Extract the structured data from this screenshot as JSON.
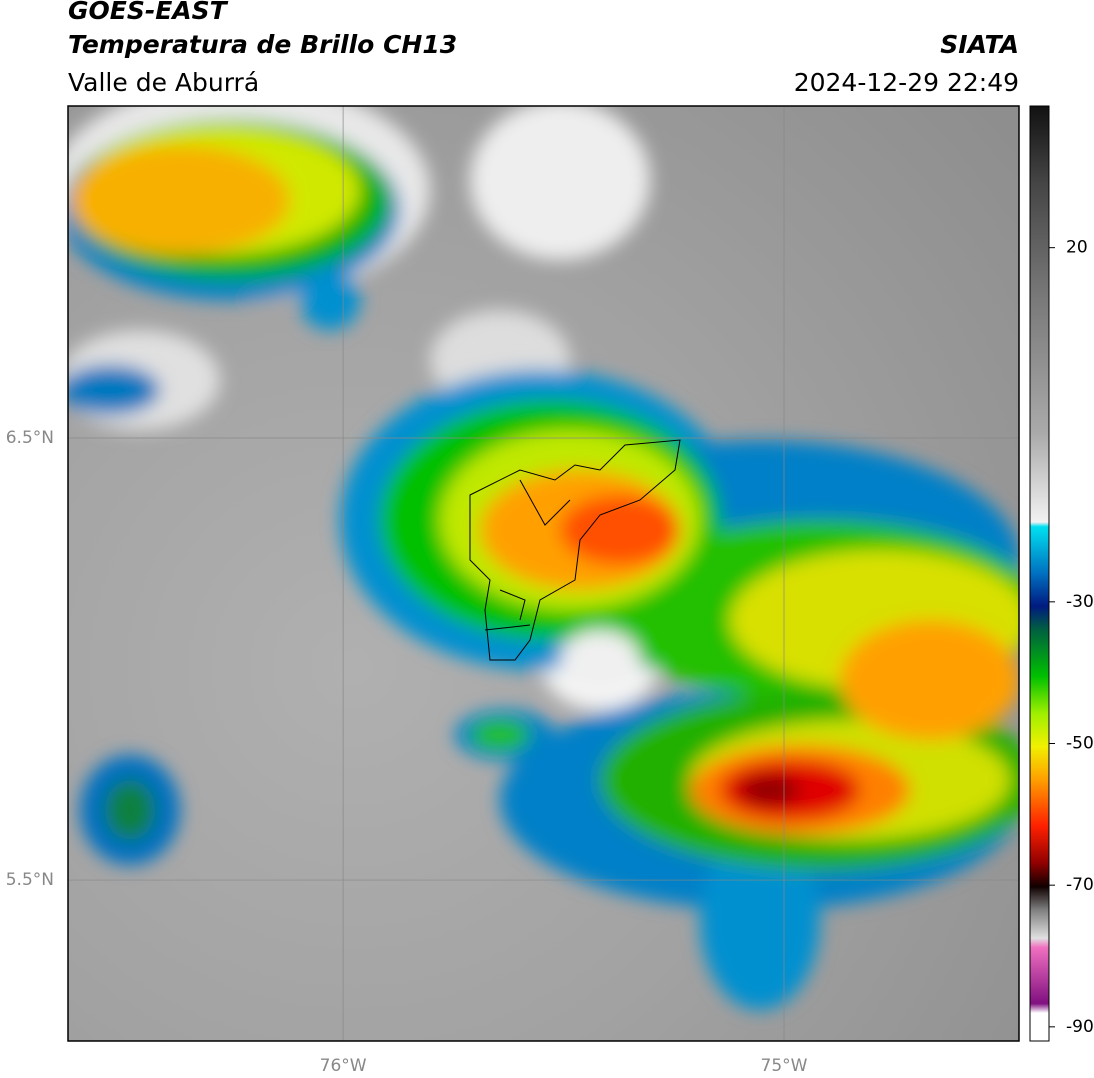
{
  "header": {
    "title": "GOES-EAST",
    "subtitle": "Temperatura de Brillo CH13",
    "region": "Valle de Aburrá",
    "source": "SIATA",
    "datetime": "2024-12-29 22:49"
  },
  "map": {
    "xlim": [
      -76.624,
      -74.467
    ],
    "ylim": [
      5.136,
      7.251
    ],
    "xticks": [
      {
        "value": -76,
        "label": "76°W"
      },
      {
        "value": -75,
        "label": "75°W"
      }
    ],
    "yticks": [
      {
        "value": 6.5,
        "label": "6.5°N"
      },
      {
        "value": 5.5,
        "label": "5.5°N"
      }
    ],
    "grid": true
  },
  "colorbar": {
    "lim": [
      -92,
      40
    ],
    "ticks": [
      20,
      -30,
      -50,
      -70,
      -90
    ]
  }
}
